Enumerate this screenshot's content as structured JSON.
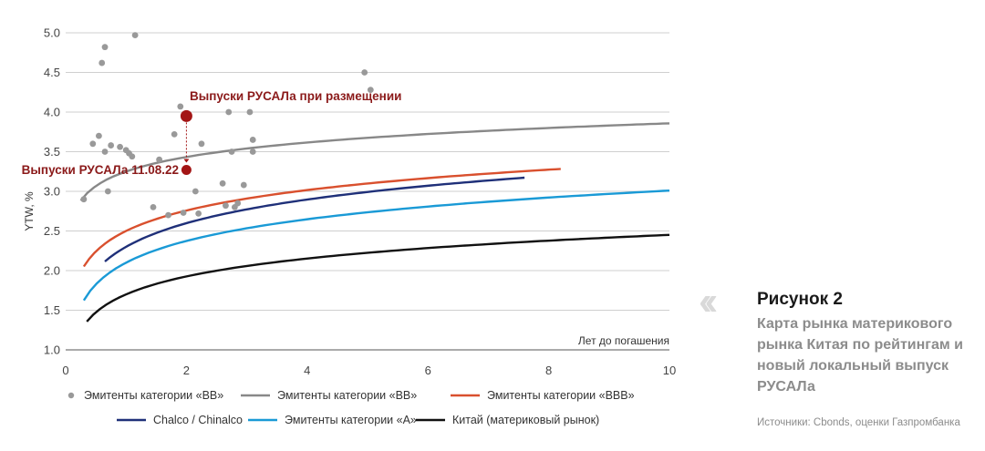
{
  "chart_data": {
    "type": "scatter",
    "ylabel": "YTW, %",
    "xlabel": "Лет до погашения",
    "xlim": [
      0,
      10
    ],
    "ylim": [
      1.0,
      5.0
    ],
    "xticks": [
      "0",
      "2",
      "4",
      "6",
      "8",
      "10"
    ],
    "yticks": [
      "1.0",
      "1.5",
      "2.0",
      "2.5",
      "3.0",
      "3.5",
      "4.0",
      "4.5",
      "5.0"
    ],
    "grid": "horizontal",
    "series": [
      {
        "name": "Эмитенты категории «BB»",
        "kind": "scatter",
        "color": "#999999",
        "points": [
          [
            0.3,
            2.9
          ],
          [
            0.45,
            3.6
          ],
          [
            0.55,
            3.7
          ],
          [
            0.6,
            4.62
          ],
          [
            0.65,
            4.82
          ],
          [
            0.65,
            3.5
          ],
          [
            0.7,
            3.0
          ],
          [
            0.75,
            3.58
          ],
          [
            0.9,
            3.56
          ],
          [
            1.0,
            3.52
          ],
          [
            1.05,
            3.48
          ],
          [
            1.1,
            3.44
          ],
          [
            1.15,
            4.97
          ],
          [
            1.45,
            2.8
          ],
          [
            1.55,
            3.4
          ],
          [
            1.7,
            2.7
          ],
          [
            1.8,
            3.72
          ],
          [
            1.9,
            4.07
          ],
          [
            1.95,
            2.73
          ],
          [
            2.15,
            3.0
          ],
          [
            2.2,
            2.72
          ],
          [
            2.25,
            3.6
          ],
          [
            2.6,
            3.1
          ],
          [
            2.65,
            2.82
          ],
          [
            2.7,
            4.0
          ],
          [
            2.75,
            3.5
          ],
          [
            2.8,
            2.8
          ],
          [
            2.85,
            2.85
          ],
          [
            2.95,
            3.08
          ],
          [
            3.05,
            4.0
          ],
          [
            3.1,
            3.5
          ],
          [
            3.1,
            3.65
          ],
          [
            4.95,
            4.5
          ],
          [
            5.05,
            4.28
          ]
        ]
      },
      {
        "name": "Эмитенты категории «BB»",
        "kind": "line",
        "color": "#888888",
        "x": [
          0.25,
          10
        ],
        "a": 3.25,
        "b": 0.264
      },
      {
        "name": "Эмитенты категории «BBB»",
        "kind": "line",
        "color": "#d9502e",
        "x": [
          0.3,
          8.2
        ],
        "a": 2.5,
        "b": 0.372
      },
      {
        "name": "Chalco / Chinalco",
        "kind": "line",
        "color": "#1f3079",
        "x": [
          0.65,
          7.6
        ],
        "a": 2.3,
        "b": 0.43
      },
      {
        "name": "Эмитенты категории «A»",
        "kind": "line",
        "color": "#1a9ad6",
        "x": [
          0.3,
          10
        ],
        "a": 2.1,
        "b": 0.395
      },
      {
        "name": "Китай (материковый рынок)",
        "kind": "line",
        "color": "#111111",
        "x": [
          0.35,
          10
        ],
        "a": 1.7,
        "b": 0.326
      }
    ],
    "annotations": [
      {
        "text": "Выпуски РУСАЛа при размещении",
        "x": 2.0,
        "y": 3.95,
        "color": "#a31515"
      },
      {
        "text": "Выпуски РУСАЛа 11.08.22",
        "x": 2.0,
        "y": 3.27,
        "color": "#a31515"
      }
    ]
  },
  "legend": [
    {
      "label": "Эмитенты категории «BB»",
      "marker": "dot",
      "color": "#999999"
    },
    {
      "label": "Эмитенты категории «BB»",
      "marker": "line",
      "color": "#888888"
    },
    {
      "label": "Эмитенты категории «BBB»",
      "marker": "line",
      "color": "#d9502e"
    },
    {
      "label": "Chalco / Chinalco",
      "marker": "line",
      "color": "#1f3079"
    },
    {
      "label": "Эмитенты категории «A»",
      "marker": "line",
      "color": "#1a9ad6"
    },
    {
      "label": "Китай (материковый рынок)",
      "marker": "line",
      "color": "#111111"
    }
  ],
  "caption": {
    "title": "Рисунок 2",
    "description": "Карта рынка материкового рынка Китая по рейтингам и новый локальный выпуск РУСАЛа",
    "source": "Источники: Cbonds, оценки Газпромбанка"
  }
}
